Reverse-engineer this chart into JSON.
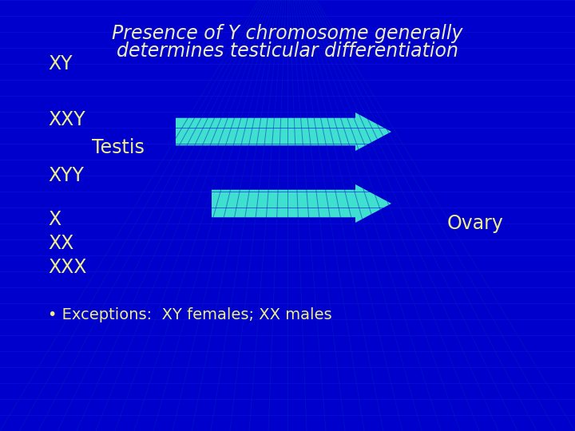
{
  "bg_color": "#0000CC",
  "grid_h_color": "#1111DD",
  "grid_v_color": "#0022BB",
  "title_line1": "Presence of Y chromosome generally",
  "title_line2": "determines testicular differentiation",
  "title_color": "#EEEEBB",
  "title_fontsize": 17,
  "yellow": "#EEEE88",
  "cyan": "#40E0D0",
  "ovary_label": "Ovary",
  "bullet_text": "Exceptions:  XY females; XX males",
  "label_fontsize": 17,
  "ovary_fontsize": 17,
  "bullet_fontsize": 14
}
